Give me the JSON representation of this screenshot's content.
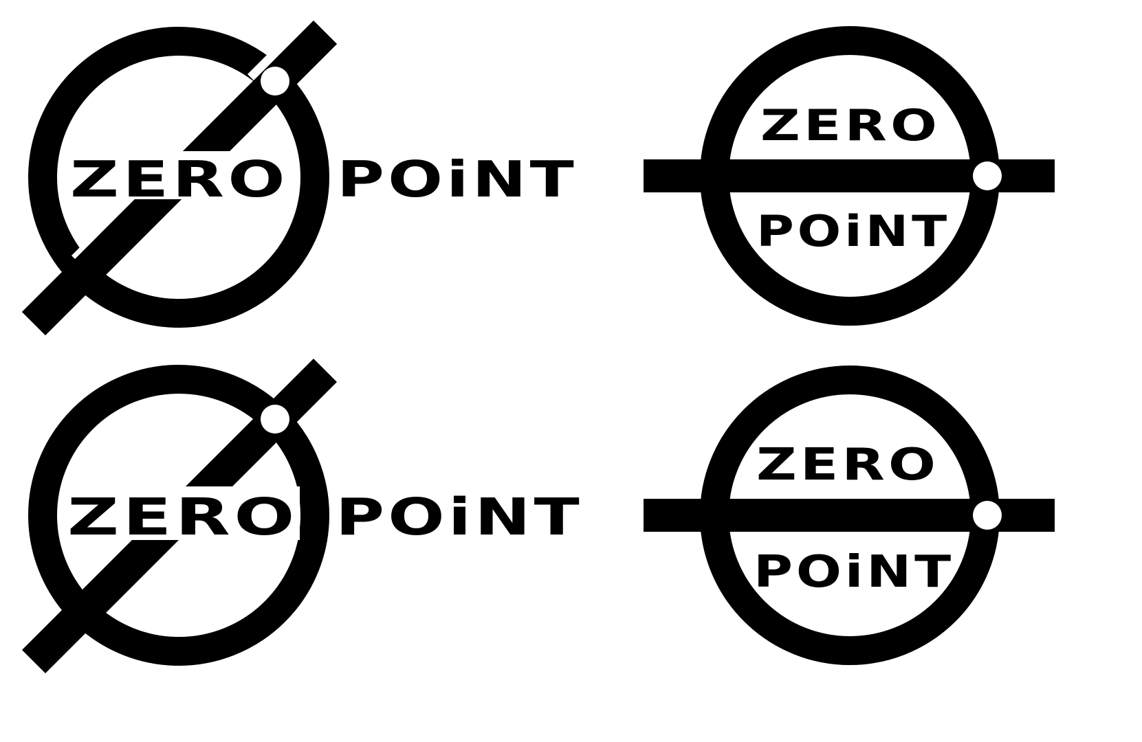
{
  "colors": {
    "ink": "#000000",
    "paper": "#ffffff"
  },
  "logos": [
    {
      "style": "diagonal-slash",
      "text_style": "outlined",
      "word1": "ZERO",
      "word2": "POiNT"
    },
    {
      "style": "horizontal-bar",
      "text_style": "outlined",
      "word1": "ZERO",
      "word2": "POiNT"
    },
    {
      "style": "diagonal-slash",
      "text_style": "solid",
      "word1": "ZERO",
      "word2": "POiNT"
    },
    {
      "style": "horizontal-bar",
      "text_style": "solid",
      "word1": "ZERO",
      "word2": "POiNT"
    }
  ]
}
